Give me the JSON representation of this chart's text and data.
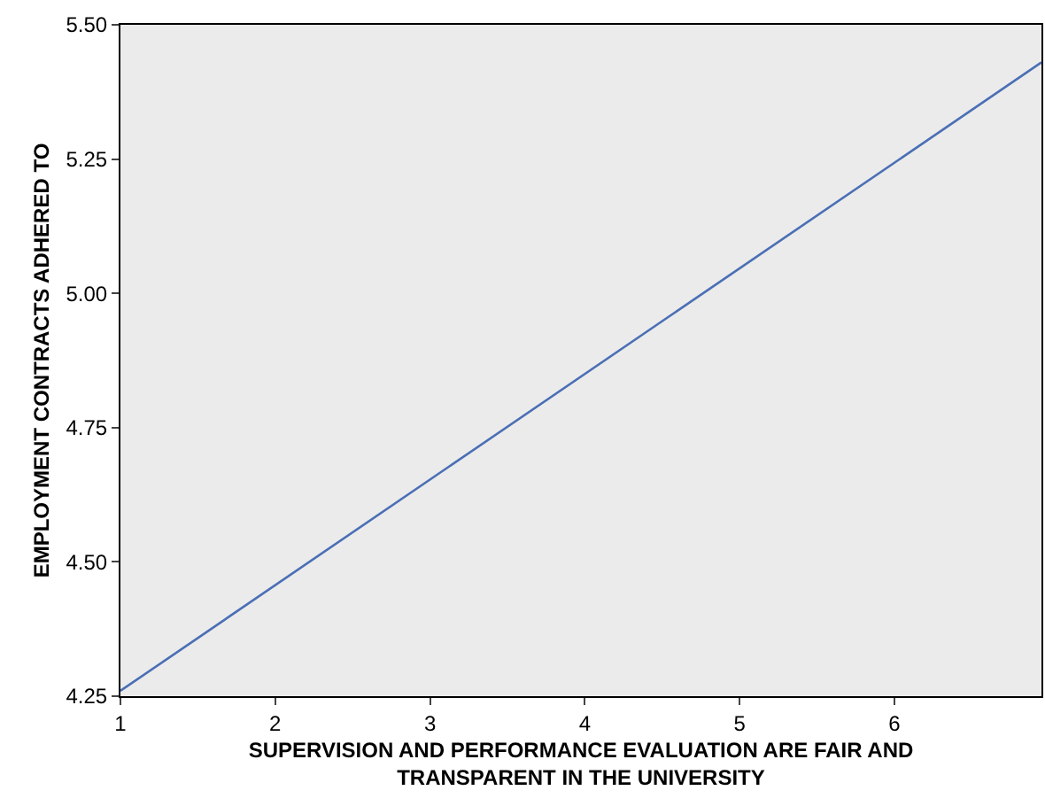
{
  "chart_data": {
    "type": "line",
    "xlabel": "SUPERVISION AND PERFORMANCE EVALUATION ARE FAIR AND\nTRANSPARENT IN THE UNIVERSITY",
    "ylabel": "EMPLOYMENT CONTRACTS ADHERED TO",
    "x": [
      1,
      6.95
    ],
    "series": [
      {
        "color": "#4a6fb5",
        "values": [
          4.26,
          5.43
        ]
      }
    ],
    "xlim": [
      1,
      6.95
    ],
    "xticks": [
      1,
      2,
      3,
      4,
      5,
      6
    ],
    "ylim": [
      4.25,
      5.5
    ],
    "yticks": [
      {
        "value": 4.25,
        "label": "4.25"
      },
      {
        "value": 4.5,
        "label": "4.50"
      },
      {
        "value": 4.75,
        "label": "4.75"
      },
      {
        "value": 5,
        "label": "5.00"
      },
      {
        "value": 5.25,
        "label": "5.25"
      },
      {
        "value": 5.5,
        "label": "5.50"
      }
    ],
    "grid": false,
    "marker": "none",
    "line_style": "solid"
  }
}
